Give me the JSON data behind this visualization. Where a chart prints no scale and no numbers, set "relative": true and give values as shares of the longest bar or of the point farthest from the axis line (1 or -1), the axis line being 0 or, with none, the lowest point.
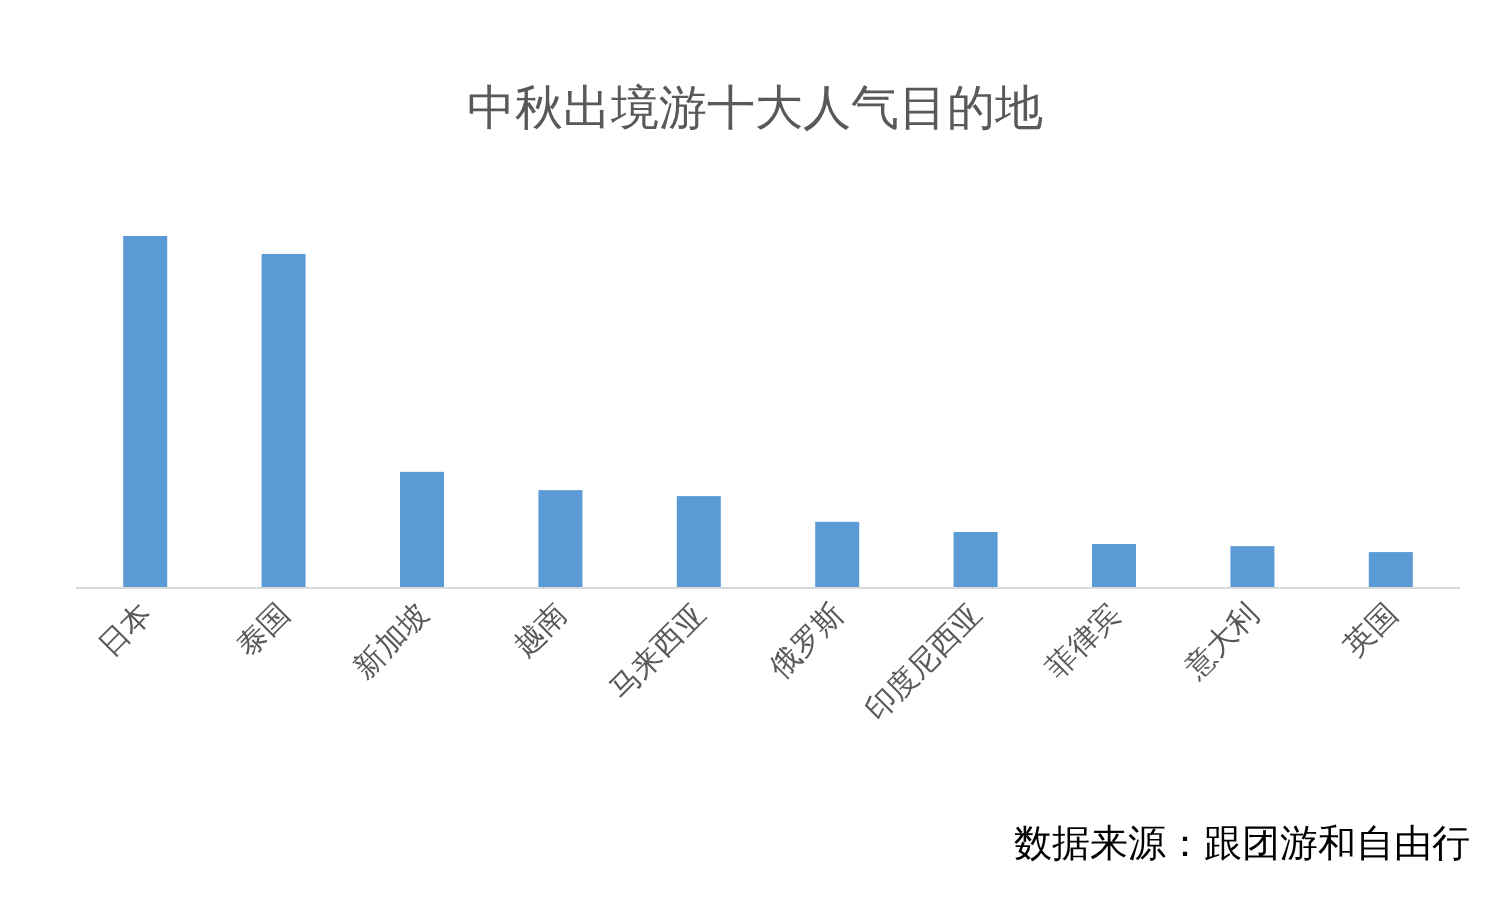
{
  "chart_data": {
    "type": "bar",
    "title": "中秋出境游十大人气目的地",
    "categories": [
      "日本",
      "泰国",
      "新加坡",
      "越南",
      "马来西亚",
      "俄罗斯",
      "印度尼西亚",
      "菲律宾",
      "意大利",
      "英国"
    ],
    "values": [
      1,
      0.949,
      0.33,
      0.278,
      0.261,
      0.188,
      0.159,
      0.125,
      0.119,
      0.102
    ],
    "color": "#5b9bd5",
    "relative": true,
    "annotations": [
      "数据来源：跟团游和自由行"
    ]
  }
}
